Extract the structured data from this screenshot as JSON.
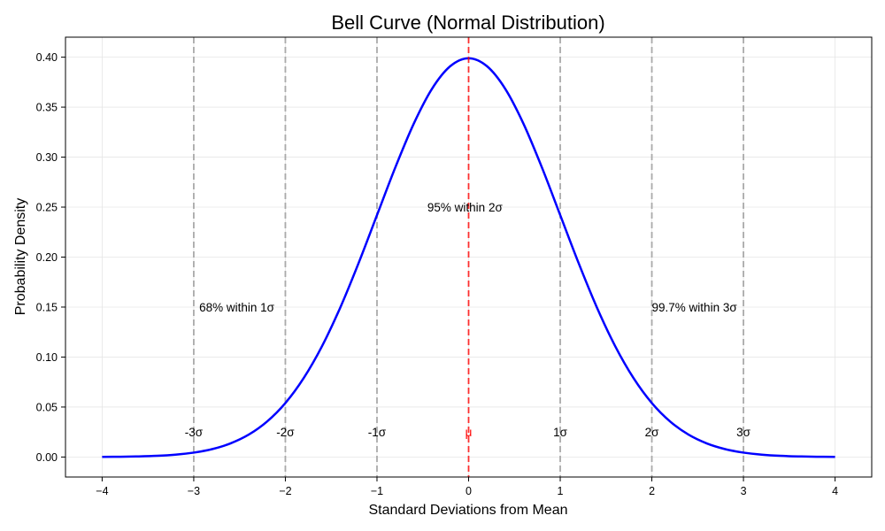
{
  "chart_data": {
    "type": "line",
    "title": "Bell Curve (Normal Distribution)",
    "xlabel": "Standard Deviations from Mean",
    "ylabel": "Probability Density",
    "xlim": [
      -4.4,
      4.4
    ],
    "ylim": [
      -0.02,
      0.42
    ],
    "grid": true,
    "x_ticks": [
      -4,
      -3,
      -2,
      -1,
      0,
      1,
      2,
      3,
      4
    ],
    "x_tick_labels": [
      "−4",
      "−3",
      "−2",
      "−1",
      "0",
      "1",
      "2",
      "3",
      "4"
    ],
    "y_ticks": [
      0.0,
      0.05,
      0.1,
      0.15,
      0.2,
      0.25,
      0.3,
      0.35,
      0.4
    ],
    "y_tick_labels": [
      "0.00",
      "0.05",
      "0.10",
      "0.15",
      "0.20",
      "0.25",
      "0.30",
      "0.35",
      "0.40"
    ],
    "series": [
      {
        "color": "#0000ff",
        "x": [
          -4,
          -3.8,
          -3.6,
          -3.4,
          -3.2,
          -3,
          -2.8,
          -2.6,
          -2.4,
          -2.2,
          -2,
          -1.8,
          -1.6,
          -1.4,
          -1.2,
          -1,
          -0.8,
          -0.6,
          -0.4,
          -0.2,
          0,
          0.2,
          0.4,
          0.6,
          0.8,
          1,
          1.2,
          1.4,
          1.6,
          1.8,
          2,
          2.2,
          2.4,
          2.6,
          2.8,
          3,
          3.2,
          3.4,
          3.6,
          3.8,
          4
        ],
        "y": [
          0.0001,
          0.0003,
          0.0006,
          0.0012,
          0.0024,
          0.0044,
          0.0079,
          0.0136,
          0.0224,
          0.0355,
          0.054,
          0.079,
          0.1109,
          0.1497,
          0.1942,
          0.242,
          0.2897,
          0.3332,
          0.3683,
          0.391,
          0.3989,
          0.391,
          0.3683,
          0.3332,
          0.2897,
          0.242,
          0.1942,
          0.1497,
          0.1109,
          0.079,
          0.054,
          0.0355,
          0.0224,
          0.0136,
          0.0079,
          0.0044,
          0.0024,
          0.0012,
          0.0006,
          0.0003,
          0.0001
        ]
      }
    ],
    "mean_line": {
      "x": 0,
      "label": "μ",
      "color": "#ff0000"
    },
    "sigma_lines": [
      {
        "x": -3,
        "label": "-3σ"
      },
      {
        "x": -2,
        "label": "-2σ"
      },
      {
        "x": -1,
        "label": "-1σ"
      },
      {
        "x": 1,
        "label": "1σ"
      },
      {
        "x": 2,
        "label": "2σ"
      },
      {
        "x": 3,
        "label": "3σ"
      }
    ],
    "sigma_label_y": 0.025,
    "annotations": [
      {
        "text": "68% within 1σ",
        "x": -2.94,
        "y": 0.15
      },
      {
        "text": "95% within 2σ",
        "x": -0.45,
        "y": 0.25
      },
      {
        "text": "99.7% within 3σ",
        "x": 2.0,
        "y": 0.15
      }
    ],
    "colors": {
      "curve": "#0000ff",
      "sigma_line": "#aaaaaa",
      "mean": "#ff0000",
      "grid": "#e6e6e6"
    }
  }
}
